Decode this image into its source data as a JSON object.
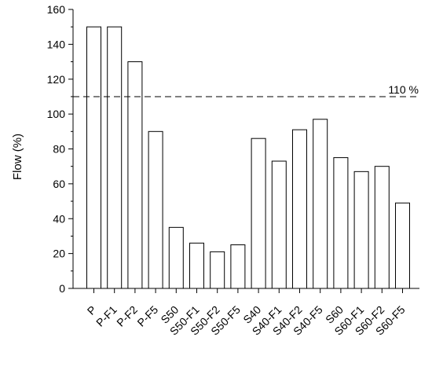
{
  "chart_data": {
    "type": "bar",
    "title": "",
    "xlabel": "",
    "ylabel": "Flow (%)",
    "ylim": [
      0,
      160
    ],
    "yticks": [
      0,
      20,
      40,
      60,
      80,
      100,
      120,
      140,
      160
    ],
    "grid": false,
    "categories": [
      "P",
      "P-F1",
      "P-F2",
      "P-F5",
      "S50",
      "S50-F1",
      "S50-F2",
      "S50-F5",
      "S40",
      "S40-F1",
      "S40-F2",
      "S40-F5",
      "S60",
      "S60-F1",
      "S60-F2",
      "S60-F5"
    ],
    "values": [
      150,
      150,
      130,
      90,
      35,
      26,
      21,
      25,
      86,
      73,
      91,
      97,
      75,
      67,
      70,
      49
    ],
    "reference_line": {
      "value": 110,
      "label": "110 %",
      "style": "dashed"
    },
    "bar_fill": "#ffffff",
    "bar_stroke": "#000000"
  }
}
